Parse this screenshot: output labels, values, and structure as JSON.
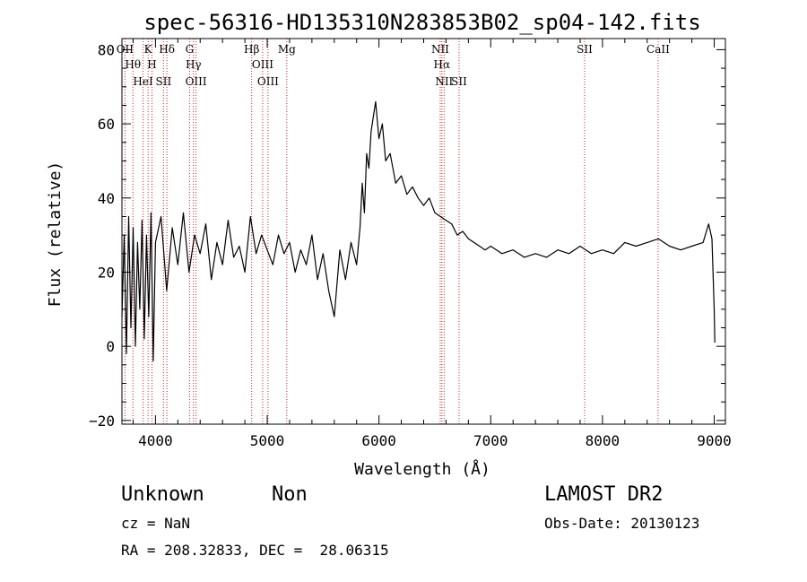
{
  "chart_data": {
    "type": "line",
    "title": "spec-56316-HD135310N283853B02_sp04-142.fits",
    "xlabel": "Wavelength (Å)",
    "ylabel": "Flux (relative)",
    "xlim": [
      3700,
      9100
    ],
    "ylim": [
      -21,
      83
    ],
    "xticks": [
      4000,
      5000,
      6000,
      7000,
      8000,
      9000
    ],
    "xtick_labels": [
      "4000",
      "5000",
      "6000",
      "7000",
      "8000",
      "9000"
    ],
    "yticks": [
      -20,
      0,
      20,
      40,
      60,
      80
    ],
    "ytick_labels": [
      "−20",
      "0",
      "20",
      "40",
      "60",
      "80"
    ],
    "series": [
      {
        "color": "#000000",
        "x": [
          3700,
          3720,
          3740,
          3760,
          3780,
          3800,
          3820,
          3840,
          3860,
          3880,
          3900,
          3920,
          3940,
          3960,
          3980,
          4000,
          4050,
          4100,
          4150,
          4200,
          4250,
          4300,
          4350,
          4400,
          4450,
          4500,
          4550,
          4600,
          4650,
          4700,
          4750,
          4800,
          4850,
          4900,
          4950,
          5000,
          5050,
          5100,
          5150,
          5200,
          5250,
          5300,
          5350,
          5400,
          5450,
          5500,
          5550,
          5600,
          5650,
          5700,
          5750,
          5800,
          5830,
          5850,
          5870,
          5890,
          5910,
          5930,
          5950,
          5970,
          6000,
          6030,
          6060,
          6100,
          6150,
          6200,
          6250,
          6300,
          6350,
          6400,
          6450,
          6500,
          6550,
          6600,
          6650,
          6700,
          6750,
          6800,
          6850,
          6900,
          6950,
          7000,
          7100,
          7200,
          7300,
          7400,
          7500,
          7600,
          7700,
          7800,
          7900,
          8000,
          8100,
          8200,
          8300,
          8400,
          8500,
          8600,
          8700,
          8800,
          8900,
          8950,
          8980,
          9000,
          9005
        ],
        "y": [
          8,
          30,
          -2,
          35,
          5,
          32,
          0,
          28,
          10,
          34,
          2,
          30,
          8,
          36,
          -4,
          28,
          35,
          15,
          32,
          22,
          36,
          20,
          30,
          25,
          33,
          18,
          28,
          22,
          34,
          24,
          27,
          20,
          35,
          25,
          30,
          26,
          22,
          30,
          25,
          28,
          20,
          26,
          22,
          30,
          18,
          25,
          15,
          8,
          26,
          18,
          28,
          22,
          32,
          44,
          36,
          52,
          48,
          58,
          62,
          66,
          56,
          60,
          50,
          52,
          44,
          46,
          41,
          43,
          40,
          38,
          40,
          36,
          35,
          34,
          33,
          30,
          31,
          29,
          28,
          27,
          26,
          27,
          25,
          26,
          24,
          25,
          24,
          26,
          25,
          27,
          25,
          26,
          25,
          28,
          27,
          28,
          29,
          27,
          26,
          27,
          28,
          33,
          29,
          10,
          1
        ]
      }
    ],
    "lines": [
      {
        "label": "OII",
        "x": 3727
      },
      {
        "label": "Hθ",
        "x": 3798
      },
      {
        "label": "HeI",
        "x": 3889
      },
      {
        "label": "K",
        "x": 3934
      },
      {
        "label": "H",
        "x": 3969
      },
      {
        "label": "SII",
        "x": 4072
      },
      {
        "label": "Hδ",
        "x": 4102
      },
      {
        "label": "G",
        "x": 4305
      },
      {
        "label": "Hγ",
        "x": 4340
      },
      {
        "label": "OIII",
        "x": 4363
      },
      {
        "label": "Hβ",
        "x": 4861
      },
      {
        "label": "OIII",
        "x": 4959
      },
      {
        "label": "OIII",
        "x": 5007
      },
      {
        "label": "Mg",
        "x": 5175
      },
      {
        "label": "NII",
        "x": 6548
      },
      {
        "label": "Hα",
        "x": 6563
      },
      {
        "label": "NII",
        "x": 6583
      },
      {
        "label": "SII",
        "x": 6717
      },
      {
        "label": "SII",
        "x": 7840
      },
      {
        "label": "CaII",
        "x": 8498
      }
    ]
  },
  "info": {
    "classification": "Unknown",
    "subclass": "Non",
    "survey": "LAMOST DR2",
    "cz": "cz = NaN",
    "obs_date": "Obs-Date: 20130123",
    "coords": "RA = 208.32833, DEC =  28.06315"
  }
}
